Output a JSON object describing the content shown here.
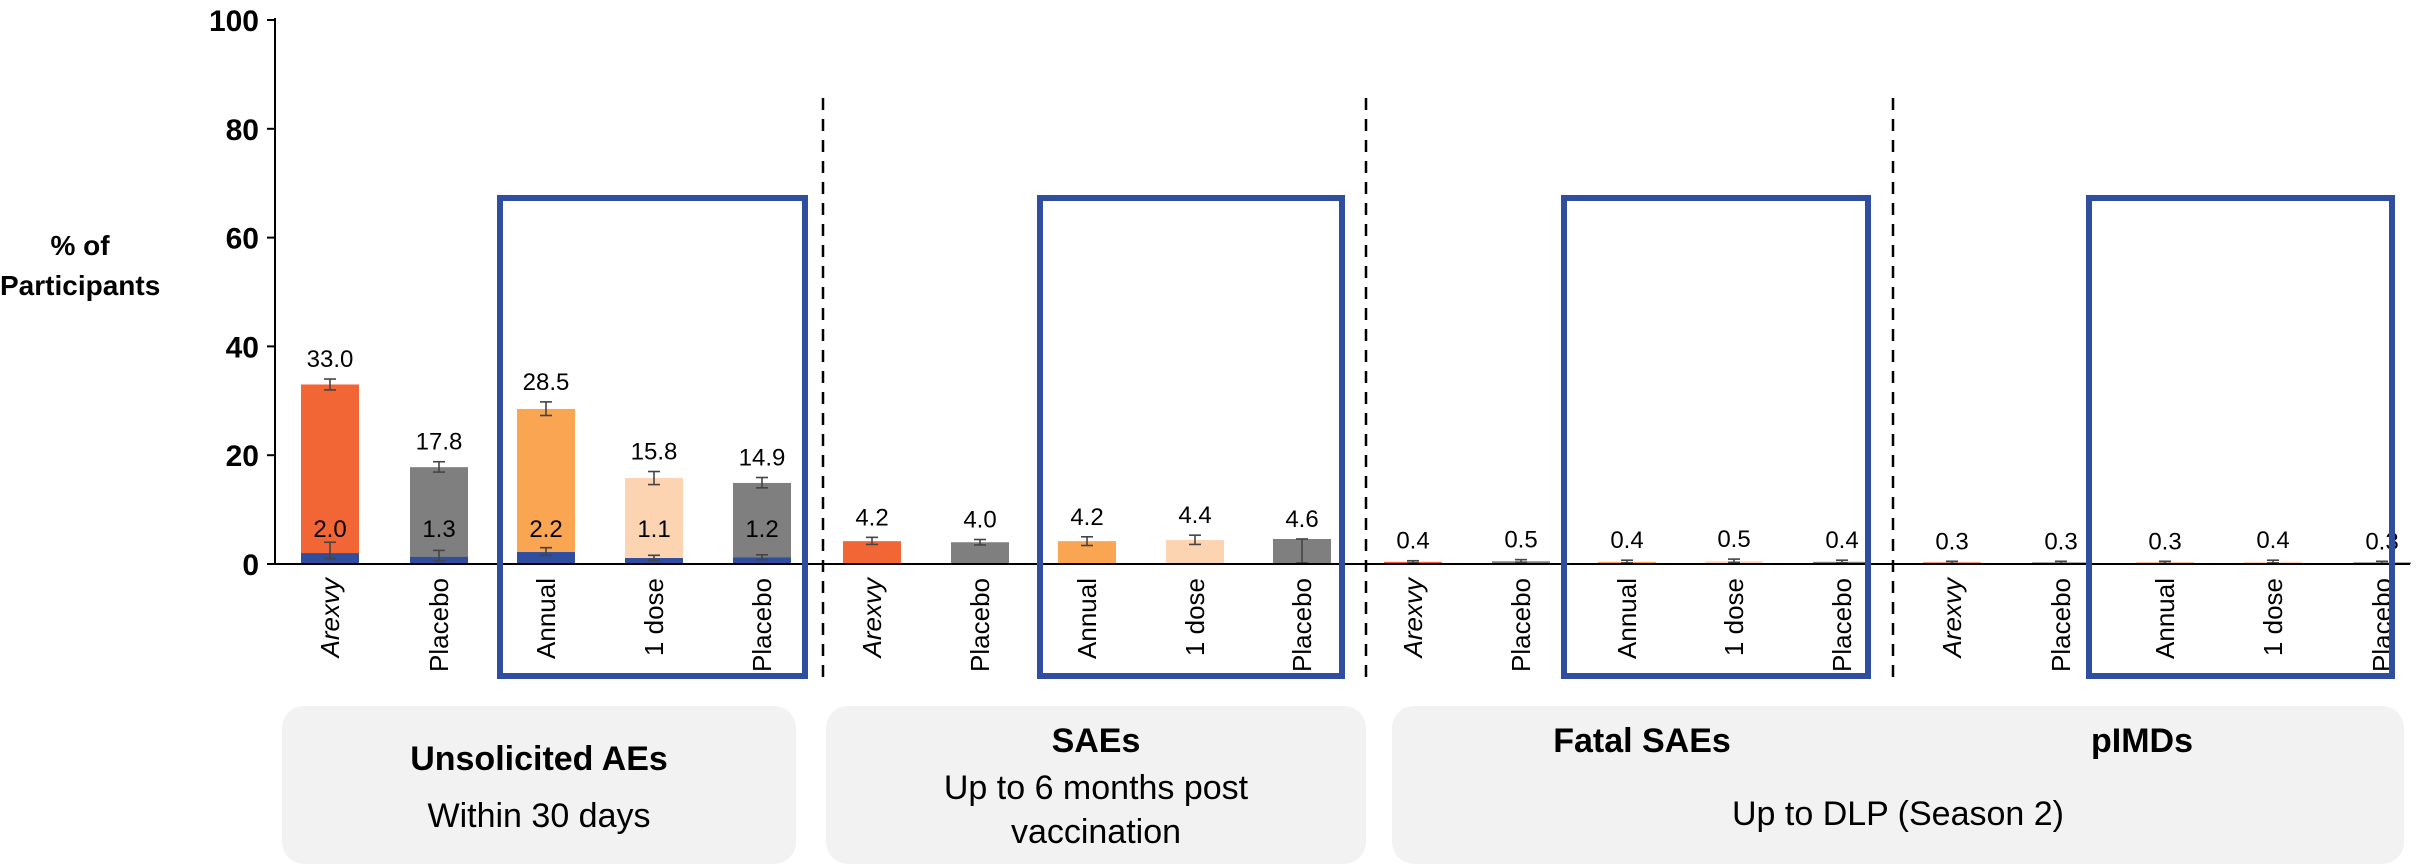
{
  "y_axis_label": "% of\nParticipants",
  "groups": [
    {
      "title": "Unsolicited AEs",
      "subtitle": "Within 30 days"
    },
    {
      "title": "SAEs",
      "subtitle": "Up to 6 months post\nvaccination"
    },
    {
      "title": "Fatal SAEs",
      "subtitle": ""
    },
    {
      "title": "pIMDs",
      "subtitle": ""
    },
    {
      "shared_subtitle": "Up to DLP (Season 2)"
    }
  ],
  "colors": {
    "arexvy": "#f26535",
    "annual": "#f9a551",
    "one_dose": "#fcd4b2",
    "placebo": "#7f7f7f",
    "grade3_overlay": "#2f4ea0",
    "highlight_box": "#2f4ea0",
    "panel_bg": "#f2f2f2"
  },
  "chart_data": {
    "type": "bar",
    "ylim": [
      0,
      100
    ],
    "yticks": [
      "0",
      "20",
      "40",
      "60",
      "80",
      "100"
    ],
    "ylabel": "% of Participants",
    "grid": false,
    "categories": [
      "Arexvy",
      "Placebo",
      "Annual",
      "1 dose",
      "Placebo",
      "Arexvy",
      "Placebo",
      "Annual",
      "1 dose",
      "Placebo",
      "Arexvy",
      "Placebo",
      "Annual",
      "1 dose",
      "Placebo",
      "Arexvy",
      "Placebo",
      "Annual",
      "1 dose",
      "Placebo"
    ],
    "italic_categories": [
      "Arexvy"
    ],
    "values": [
      33.0,
      17.8,
      28.5,
      15.8,
      14.9,
      4.2,
      4.0,
      4.2,
      4.4,
      4.6,
      0.4,
      0.5,
      0.4,
      0.5,
      0.4,
      0.3,
      0.3,
      0.3,
      0.4,
      0.3
    ],
    "value_labels": [
      "33.0",
      "17.8",
      "28.5",
      "15.8",
      "14.9",
      "4.2",
      "4.0",
      "4.2",
      "4.4",
      "4.6",
      "0.4",
      "0.5",
      "0.4",
      "0.5",
      "0.4",
      "0.3",
      "0.3",
      "0.3",
      "0.4",
      "0.3"
    ],
    "grade3_values": [
      2.0,
      1.3,
      2.2,
      1.1,
      1.2
    ],
    "grade3_labels": [
      "2.0",
      "1.3",
      "2.2",
      "1.1",
      "1.2"
    ],
    "error_bars": [
      [
        32.0,
        34.0
      ],
      [
        16.9,
        18.8
      ],
      [
        27.3,
        29.8
      ],
      [
        14.6,
        17.0
      ],
      [
        14.0,
        15.9
      ],
      [
        3.6,
        4.9
      ],
      [
        3.5,
        4.5
      ],
      [
        3.4,
        5.0
      ],
      [
        3.6,
        5.3
      ],
      [
        0.2,
        4.6
      ],
      [
        0.2,
        0.6
      ],
      [
        0.3,
        0.8
      ],
      [
        0.2,
        0.7
      ],
      [
        0.3,
        0.9
      ],
      [
        0.2,
        0.7
      ],
      [
        0.1,
        0.5
      ],
      [
        0.1,
        0.5
      ],
      [
        0.1,
        0.5
      ],
      [
        0.2,
        0.7
      ],
      [
        0.1,
        0.5
      ]
    ],
    "grade3_error_bars": [
      [
        1.0,
        4.0
      ],
      [
        0.6,
        2.5
      ],
      [
        1.6,
        3.0
      ],
      [
        0.7,
        1.6
      ],
      [
        0.8,
        1.7
      ]
    ],
    "bar_color_keys": [
      "arexvy",
      "placebo",
      "annual",
      "one_dose",
      "placebo",
      "arexvy",
      "placebo",
      "annual",
      "one_dose",
      "placebo",
      "arexvy",
      "placebo",
      "annual",
      "one_dose",
      "placebo",
      "arexvy",
      "placebo",
      "annual",
      "one_dose",
      "placebo"
    ]
  }
}
